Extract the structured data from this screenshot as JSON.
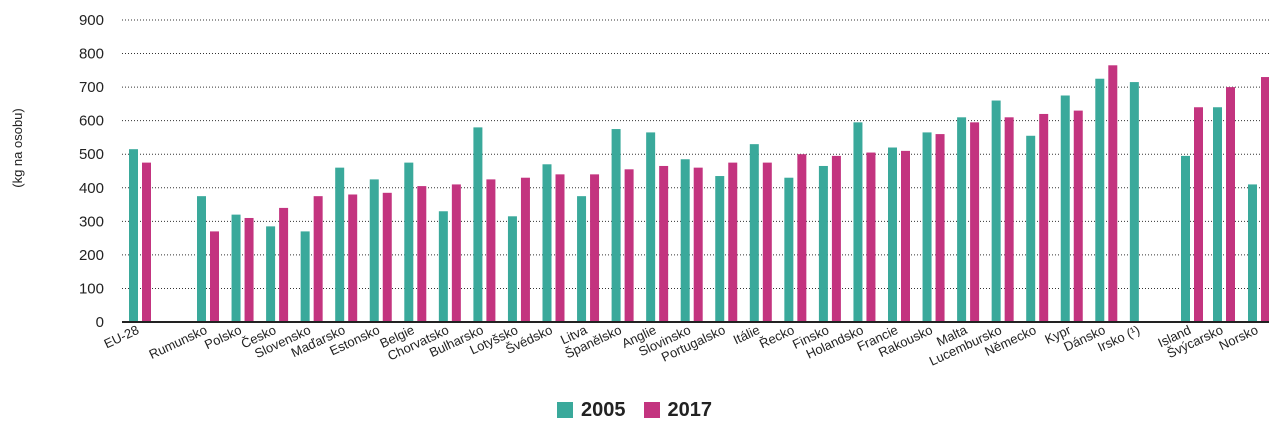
{
  "chart_data": {
    "type": "bar",
    "ylabel": "(kg na osobu)",
    "ylim": [
      0,
      900
    ],
    "yticks": [
      0,
      100,
      200,
      300,
      400,
      500,
      600,
      700,
      800,
      900
    ],
    "grid": "horizontal-dotted",
    "legend_position": "bottom-center",
    "categories": [
      "EU-28",
      "Rumunsko",
      "Polsko",
      "Česko",
      "Slovensko",
      "Maďarsko",
      "Estonsko",
      "Belgie",
      "Chorvatsko",
      "Bulharsko",
      "Lotyšsko",
      "Švédsko",
      "Litva",
      "Španělsko",
      "Anglie",
      "Slovinsko",
      "Portugalsko",
      "Itálie",
      "Řecko",
      "Finsko",
      "Holandsko",
      "Francie",
      "Rakousko",
      "Malta",
      "Lucembursko",
      "Německo",
      "Kypr",
      "Dánsko",
      "Irsko (¹)",
      "Island",
      "Švýcarsko",
      "Norsko"
    ],
    "series": [
      {
        "name": "2005",
        "color": "#3aa99b",
        "values": [
          515,
          375,
          320,
          285,
          270,
          460,
          425,
          475,
          330,
          580,
          315,
          470,
          375,
          575,
          565,
          485,
          435,
          530,
          430,
          465,
          595,
          520,
          565,
          610,
          660,
          555,
          675,
          725,
          715,
          495,
          640,
          410
        ]
      },
      {
        "name": "2017",
        "color": "#c3347f",
        "values": [
          475,
          270,
          310,
          340,
          375,
          380,
          385,
          405,
          410,
          425,
          430,
          440,
          440,
          455,
          465,
          460,
          475,
          475,
          500,
          495,
          505,
          510,
          560,
          595,
          610,
          620,
          630,
          765,
          null,
          640,
          700,
          730
        ]
      }
    ]
  }
}
